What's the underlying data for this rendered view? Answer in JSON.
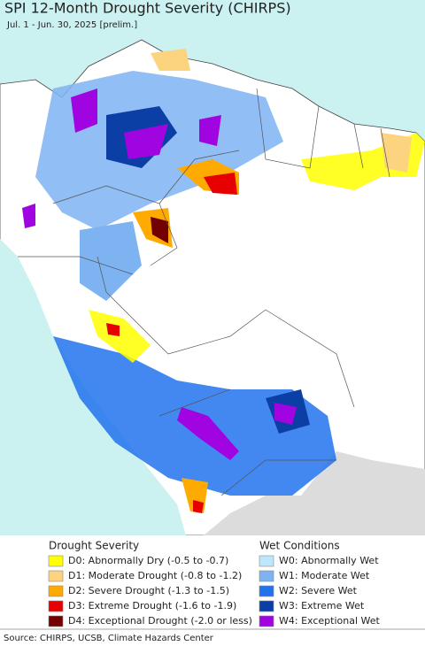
{
  "header": {
    "title": "SPI 12-Month Drought Severity (CHIRPS)",
    "subtitle": "Jul. 1 - Jun. 30, 2025 [prelim.]"
  },
  "legend": {
    "drought": {
      "title": "Drought Severity",
      "items": [
        {
          "label": "D0: Abnormally Dry (-0.5 to -0.7)",
          "color": "#ffff00"
        },
        {
          "label": "D1: Moderate Drought (-0.8 to -1.2)",
          "color": "#fcd37f"
        },
        {
          "label": "D2: Severe Drought (-1.3 to -1.5)",
          "color": "#ffaa00"
        },
        {
          "label": "D3: Extreme Drought (-1.6 to -1.9)",
          "color": "#e60000"
        },
        {
          "label": "D4: Exceptional Drought (-2.0 or less)",
          "color": "#730000"
        }
      ]
    },
    "wet": {
      "title": "Wet Conditions",
      "items": [
        {
          "label": "W0: Abnormally Wet",
          "color": "#bde8fc"
        },
        {
          "label": "W1: Moderate Wet",
          "color": "#7eb3f2"
        },
        {
          "label": "W2: Severe Wet",
          "color": "#2272ee"
        },
        {
          "label": "W3: Extreme Wet",
          "color": "#0c3fa6"
        },
        {
          "label": "W4: Exceptional Wet",
          "color": "#a004e0"
        }
      ]
    }
  },
  "source": "Source: CHIRPS, UCSB, Climate Hazards Center"
}
